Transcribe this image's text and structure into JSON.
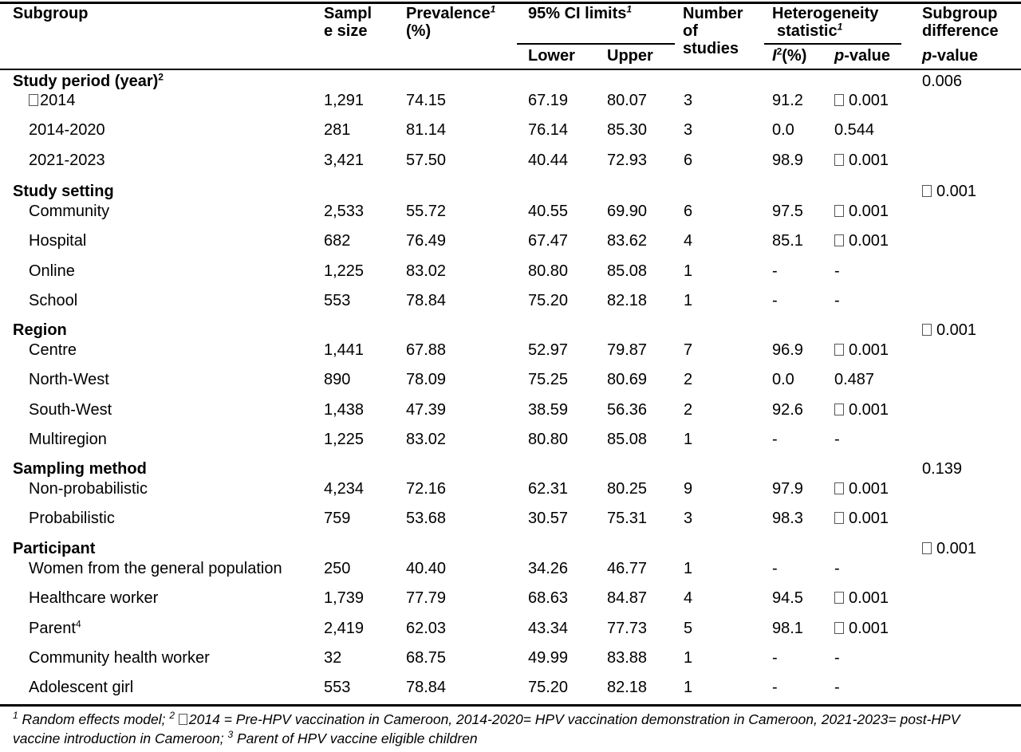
{
  "header": {
    "subgroup": "Subgroup",
    "sample_size_1": "Sampl",
    "sample_size_2": "e size",
    "prevalence_1": "Prevalence",
    "prevalence_sup": "1",
    "prevalence_2": "(%)",
    "ci_label": "95% CI limits",
    "ci_sup": "1",
    "ci_lower": "Lower",
    "ci_upper": "Upper",
    "studies_1": "Number",
    "studies_2": "of",
    "studies_3": "studies",
    "het_1": "Heterogeneity",
    "het_2": "statistic",
    "het_sup": "1",
    "i2_letter": "I",
    "i2_sup": "2",
    "i2_rest": "(%)",
    "het_p_italic": "p",
    "het_p_rest": "-value",
    "diff_1": "Subgroup",
    "diff_2": "difference",
    "diff_p_italic": "p",
    "diff_p_rest": "-value"
  },
  "groups": [
    {
      "label": "Study period (year)",
      "label_sup": "2",
      "diff_box": false,
      "diff_value": "0.006",
      "rows": [
        {
          "box": true,
          "name": "2014",
          "n": "1,291",
          "prev": "74.15",
          "lower": "67.19",
          "upper": "80.07",
          "studies": "3",
          "i2": "91.2",
          "p_box": true,
          "p": "0.001"
        },
        {
          "box": false,
          "name": "2014-2020",
          "n": "281",
          "prev": "81.14",
          "lower": "76.14",
          "upper": "85.30",
          "studies": "3",
          "i2": "0.0",
          "p_box": false,
          "p": "0.544"
        },
        {
          "box": false,
          "name": "2021-2023",
          "n": "3,421",
          "prev": "57.50",
          "lower": "40.44",
          "upper": "72.93",
          "studies": "6",
          "i2": "98.9",
          "p_box": true,
          "p": "0.001"
        }
      ]
    },
    {
      "label": "Study setting",
      "label_sup": "",
      "diff_box": true,
      "diff_value": "0.001",
      "rows": [
        {
          "box": false,
          "name": "Community",
          "n": "2,533",
          "prev": "55.72",
          "lower": "40.55",
          "upper": "69.90",
          "studies": "6",
          "i2": "97.5",
          "p_box": true,
          "p": "0.001"
        },
        {
          "box": false,
          "name": "Hospital",
          "n": "682",
          "prev": "76.49",
          "lower": "67.47",
          "upper": "83.62",
          "studies": "4",
          "i2": "85.1",
          "p_box": true,
          "p": "0.001"
        },
        {
          "box": false,
          "name": "Online",
          "n": "1,225",
          "prev": "83.02",
          "lower": "80.80",
          "upper": "85.08",
          "studies": "1",
          "i2": "-",
          "p_box": false,
          "p": "-"
        },
        {
          "box": false,
          "name": "School",
          "n": "553",
          "prev": "78.84",
          "lower": "75.20",
          "upper": "82.18",
          "studies": "1",
          "i2": "-",
          "p_box": false,
          "p": "-"
        }
      ]
    },
    {
      "label": "Region",
      "label_sup": "",
      "diff_box": true,
      "diff_value": "0.001",
      "rows": [
        {
          "box": false,
          "name": "Centre",
          "n": "1,441",
          "prev": "67.88",
          "lower": "52.97",
          "upper": "79.87",
          "studies": "7",
          "i2": "96.9",
          "p_box": true,
          "p": "0.001"
        },
        {
          "box": false,
          "name": "North-West",
          "n": "890",
          "prev": "78.09",
          "lower": "75.25",
          "upper": "80.69",
          "studies": "2",
          "i2": "0.0",
          "p_box": false,
          "p": "0.487"
        },
        {
          "box": false,
          "name": "South-West",
          "n": "1,438",
          "prev": "47.39",
          "lower": "38.59",
          "upper": "56.36",
          "studies": "2",
          "i2": "92.6",
          "p_box": true,
          "p": "0.001"
        },
        {
          "box": false,
          "name": "Multiregion",
          "n": "1,225",
          "prev": "83.02",
          "lower": "80.80",
          "upper": "85.08",
          "studies": "1",
          "i2": "-",
          "p_box": false,
          "p": "-"
        }
      ]
    },
    {
      "label": "Sampling method",
      "label_sup": "",
      "diff_box": false,
      "diff_value": "0.139",
      "rows": [
        {
          "box": false,
          "name": "Non-probabilistic",
          "n": "4,234",
          "prev": "72.16",
          "lower": "62.31",
          "upper": "80.25",
          "studies": "9",
          "i2": "97.9",
          "p_box": true,
          "p": "0.001"
        },
        {
          "box": false,
          "name": "Probabilistic",
          "n": "759",
          "prev": "53.68",
          "lower": "30.57",
          "upper": "75.31",
          "studies": "3",
          "i2": "98.3",
          "p_box": true,
          "p": "0.001"
        }
      ]
    },
    {
      "label": "Participant",
      "label_sup": "",
      "diff_box": true,
      "diff_value": "0.001",
      "rows": [
        {
          "box": false,
          "name": "Women from the general population",
          "n": "250",
          "prev": "40.40",
          "lower": "34.26",
          "upper": "46.77",
          "studies": "1",
          "i2": "-",
          "p_box": false,
          "p": "-"
        },
        {
          "box": false,
          "name": "Healthcare worker",
          "n": "1,739",
          "prev": "77.79",
          "lower": "68.63",
          "upper": "84.87",
          "studies": "4",
          "i2": "94.5",
          "p_box": true,
          "p": "0.001"
        },
        {
          "box": false,
          "name": "Parent",
          "name_sup": "4",
          "n": "2,419",
          "prev": "62.03",
          "lower": "43.34",
          "upper": "77.73",
          "studies": "5",
          "i2": "98.1",
          "p_box": true,
          "p": "0.001"
        },
        {
          "box": false,
          "name": "Community health worker",
          "n": "32",
          "prev": "68.75",
          "lower": "49.99",
          "upper": "83.88",
          "studies": "1",
          "i2": "-",
          "p_box": false,
          "p": "-"
        },
        {
          "box": false,
          "name": "Adolescent girl",
          "n": "553",
          "prev": "78.84",
          "lower": "75.20",
          "upper": "82.18",
          "studies": "1",
          "i2": "-",
          "p_box": false,
          "p": "-"
        }
      ]
    }
  ],
  "footnote": {
    "sup1": "1",
    "part1": " Random effects model; ",
    "sup2": "2",
    "part2": "2014 = Pre-HPV vaccination in Cameroon, 2014-2020= HPV vaccination demonstration in Cameroon, 2021-2023= post-HPV vaccine introduction in Cameroon; ",
    "sup3": "3",
    "part3": " Parent of HPV vaccine eligible children"
  }
}
